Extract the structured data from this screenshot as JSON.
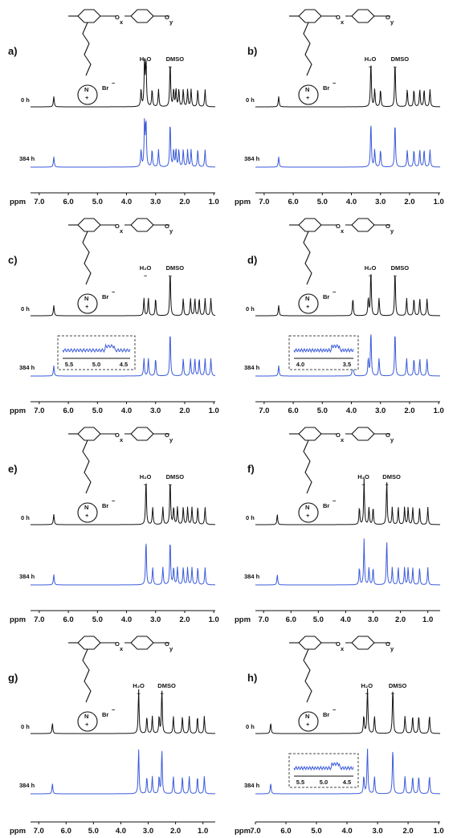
{
  "chart_data": [
    {
      "type": "line",
      "panel": "a)",
      "label": "a)",
      "title": "",
      "xlabel": "ppm",
      "xlim": [
        7.3,
        0.95
      ],
      "ticks": [
        "7.0",
        "6.0",
        "5.0",
        "4.0",
        "3.0",
        "2.0",
        "1.0"
      ],
      "annotations": [
        "H₂O",
        "DMSO"
      ],
      "series": [
        {
          "name": "0 h"
        },
        {
          "name": "384 h"
        }
      ],
      "peaks_ppm": [
        6.5,
        3.5,
        3.38,
        3.33,
        3.12,
        2.9,
        2.5,
        2.38,
        2.3,
        2.2,
        2.05,
        1.9,
        1.78,
        1.55,
        1.3
      ],
      "inset": null
    },
    {
      "type": "line",
      "panel": "b)",
      "label": "b)",
      "title": "",
      "xlabel": "ppm",
      "xlim": [
        7.3,
        0.95
      ],
      "ticks": [
        "7.0",
        "6.0",
        "5.0",
        "4.0",
        "3.0",
        "2.0",
        "1.0"
      ],
      "annotations": [
        "H₂O",
        "DMSO"
      ],
      "series": [
        {
          "name": "0 h"
        },
        {
          "name": "384 h"
        }
      ],
      "peaks_ppm": [
        6.5,
        3.33,
        3.2,
        3.0,
        2.5,
        2.08,
        1.85,
        1.65,
        1.5,
        1.3
      ],
      "inset": null
    },
    {
      "type": "line",
      "panel": "c)",
      "label": "c)",
      "title": "",
      "xlabel": "ppm",
      "xlim": [
        7.3,
        0.95
      ],
      "ticks": [
        "7.0",
        "6.0",
        "5.0",
        "4.0",
        "3.0",
        "2.0",
        "1.0"
      ],
      "annotations": [
        "H₂O",
        "DMSO"
      ],
      "series": [
        {
          "name": "0 h"
        },
        {
          "name": "384 h"
        }
      ],
      "peaks_ppm": [
        6.5,
        3.4,
        3.25,
        3.0,
        2.5,
        2.05,
        1.8,
        1.65,
        1.5,
        1.3,
        1.1
      ],
      "inset": {
        "ticks": [
          "5.5",
          "5.0",
          "4.5"
        ]
      }
    },
    {
      "type": "line",
      "panel": "d)",
      "label": "d)",
      "title": "",
      "xlabel": "",
      "xlim": [
        7.3,
        0.95
      ],
      "ticks": [
        "7.0",
        "6.0",
        "5.0",
        "4.0",
        "3.0",
        "2.0",
        "1.0"
      ],
      "annotations": [
        "H₂O",
        "DMSO"
      ],
      "series": [
        {
          "name": "0 h"
        },
        {
          "name": "384 h"
        }
      ],
      "peaks_ppm": [
        6.5,
        3.95,
        3.42,
        3.33,
        3.05,
        2.5,
        2.1,
        1.85,
        1.65,
        1.4
      ],
      "inset": {
        "ticks": [
          "4.0",
          "3.5"
        ]
      }
    },
    {
      "type": "line",
      "panel": "e)",
      "label": "e)",
      "title": "",
      "xlabel": "ppm",
      "xlim": [
        7.3,
        0.95
      ],
      "ticks": [
        "7.0",
        "6.0",
        "5.0",
        "4.0",
        "3.0",
        "2.0",
        "1.0"
      ],
      "annotations": [
        "H₂O",
        "DMSO"
      ],
      "series": [
        {
          "name": "0 h"
        },
        {
          "name": "384 h"
        }
      ],
      "peaks_ppm": [
        6.5,
        3.33,
        3.1,
        2.75,
        2.5,
        2.38,
        2.25,
        2.05,
        1.9,
        1.75,
        1.55,
        1.3
      ],
      "inset": null
    },
    {
      "type": "line",
      "panel": "f)",
      "label": "f)",
      "title": "",
      "xlabel": "ppm",
      "xlim": [
        7.3,
        0.55
      ],
      "ticks": [
        "7.0",
        "6.0",
        "5.0",
        "4.0",
        "3.0",
        "2.0",
        "1.0"
      ],
      "annotations": [
        "H₂O",
        "DMSO"
      ],
      "series": [
        {
          "name": "0 h"
        },
        {
          "name": "384 h"
        }
      ],
      "peaks_ppm": [
        6.5,
        3.5,
        3.33,
        3.15,
        3.0,
        2.5,
        2.3,
        2.08,
        1.85,
        1.72,
        1.55,
        1.3,
        1.0
      ],
      "inset": null
    },
    {
      "type": "line",
      "panel": "g)",
      "label": "g)",
      "title": "",
      "xlabel": "ppm",
      "xlim": [
        7.3,
        0.55
      ],
      "ticks": [
        "7.0",
        "6.0",
        "5.0",
        "4.0",
        "3.0",
        "2.0",
        "1.0"
      ],
      "annotations": [
        "H₂O",
        "DMSO"
      ],
      "series": [
        {
          "name": "0 h"
        },
        {
          "name": "384 h"
        }
      ],
      "peaks_ppm": [
        6.5,
        3.35,
        3.05,
        2.85,
        2.6,
        2.5,
        2.08,
        1.75,
        1.5,
        1.2,
        0.95
      ],
      "inset": null
    },
    {
      "type": "line",
      "panel": "h)",
      "label": "h)",
      "title": "",
      "xlabel": "ppm",
      "xlim": [
        7.0,
        0.95
      ],
      "ticks": [
        "7.0",
        "6.0",
        "5.0",
        "4.0",
        "3.0",
        "2.0",
        "1.0"
      ],
      "annotations": [
        "H₂O",
        "DMSO"
      ],
      "series": [
        {
          "name": "0 h"
        },
        {
          "name": "384 h"
        }
      ],
      "peaks_ppm": [
        6.5,
        3.45,
        3.33,
        3.1,
        2.5,
        2.1,
        1.85,
        1.65,
        1.3
      ],
      "inset": {
        "ticks": [
          "5.5",
          "5.0",
          "4.5"
        ]
      }
    }
  ],
  "colors": {
    "black_trace": "#111111",
    "blue_trace": "#3b5bdb"
  }
}
